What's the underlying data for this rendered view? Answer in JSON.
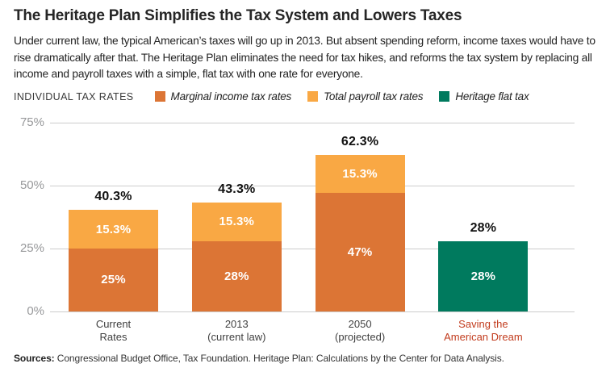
{
  "title": "The Heritage Plan Simplifies the Tax System and Lowers Taxes",
  "description": "Under current law, the typical American’s taxes will go up in 2013. But absent spending reform, income taxes would have to rise dramatically after that. The Heritage Plan eliminates the need for tax hikes, and reforms the tax system by replacing all income and payroll taxes with a simple, flat tax with one rate for everyone.",
  "legend": {
    "heading": "INDIVIDUAL TAX RATES",
    "items": [
      {
        "label": "Marginal income tax rates",
        "color": "#DC7535"
      },
      {
        "label": "Total payroll tax rates",
        "color": "#F9A844"
      },
      {
        "label": "Heritage flat tax",
        "color": "#007A5E"
      }
    ]
  },
  "chart_data": {
    "type": "bar",
    "stacked": true,
    "ylabel": "",
    "xlabel": "",
    "ylim": [
      0,
      75
    ],
    "grid": true,
    "legend_position": "top",
    "yticks": [
      {
        "value": 75,
        "label": "75%"
      },
      {
        "value": 50,
        "label": "50%"
      },
      {
        "value": 25,
        "label": "25%"
      },
      {
        "value": 0,
        "label": "0%"
      }
    ],
    "series_names": [
      "Marginal income tax rates",
      "Total payroll tax rates",
      "Heritage flat tax"
    ],
    "bars": [
      {
        "category_lines": [
          "Current",
          "Rates"
        ],
        "category_color": "#404040",
        "total": 40.3,
        "total_label": "40.3%",
        "segments": [
          {
            "series": "Marginal income tax rates",
            "value": 25,
            "label": "25%",
            "color": "#DC7535"
          },
          {
            "series": "Total payroll tax rates",
            "value": 15.3,
            "label": "15.3%",
            "color": "#F9A844"
          }
        ]
      },
      {
        "category_lines": [
          "2013",
          "(current law)"
        ],
        "category_color": "#404040",
        "total": 43.3,
        "total_label": "43.3%",
        "segments": [
          {
            "series": "Marginal income tax rates",
            "value": 28,
            "label": "28%",
            "color": "#DC7535"
          },
          {
            "series": "Total payroll tax rates",
            "value": 15.3,
            "label": "15.3%",
            "color": "#F9A844"
          }
        ]
      },
      {
        "category_lines": [
          "2050",
          "(projected)"
        ],
        "category_color": "#404040",
        "total": 62.3,
        "total_label": "62.3%",
        "segments": [
          {
            "series": "Marginal income tax rates",
            "value": 47,
            "label": "47%",
            "color": "#DC7535"
          },
          {
            "series": "Total payroll tax rates",
            "value": 15.3,
            "label": "15.3%",
            "color": "#F9A844"
          }
        ]
      },
      {
        "category_lines": [
          "Saving the",
          "American Dream"
        ],
        "category_color": "#C23C1E",
        "total": 28,
        "total_label": "28%",
        "segments": [
          {
            "series": "Heritage flat tax",
            "value": 28,
            "label": "28%",
            "color": "#007A5E"
          }
        ]
      }
    ]
  },
  "sources": {
    "prefix": "Sources:",
    "text": " Congressional Budget Office, Tax Foundation. Heritage Plan: Calculations by the Center for Data Analysis."
  }
}
